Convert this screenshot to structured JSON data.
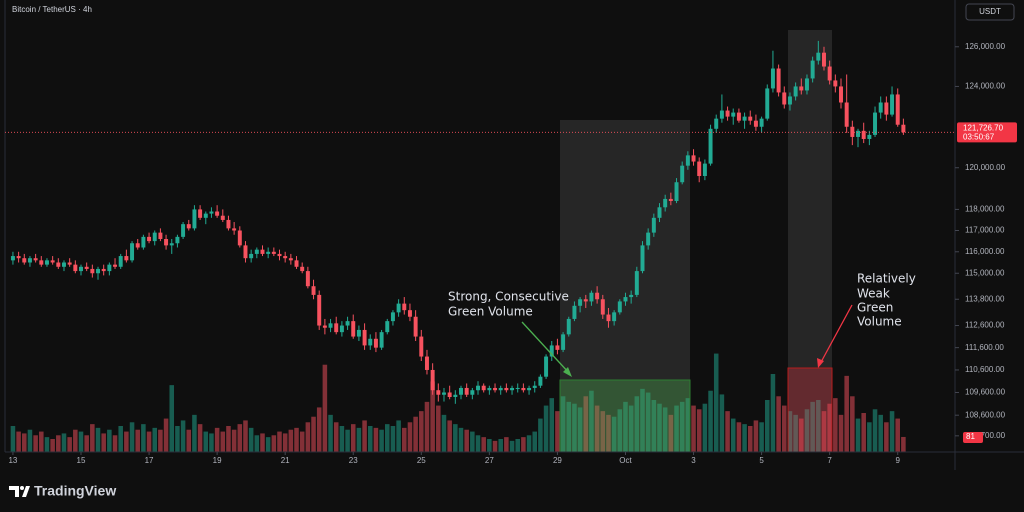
{
  "chart_data": {
    "type": "candlestick",
    "title": "Bitcoin / TetherUS · 4h",
    "currency_button": "USDT",
    "log_scale": true,
    "ylim": [
      107000,
      128400
    ],
    "xlim": [
      -1.4,
      166.1
    ],
    "volume_ylim": [
      0,
      700
    ],
    "up_color": "#22ab94",
    "down_color": "#f7525f",
    "yticks": [
      {
        "value": 126000,
        "label": "126,000.00"
      },
      {
        "value": 124000,
        "label": "124,000.00"
      },
      {
        "value": 120000,
        "label": "120,000.00"
      },
      {
        "value": 118000,
        "label": "118,000.00"
      },
      {
        "value": 117000,
        "label": "117,000.00"
      },
      {
        "value": 116000,
        "label": "116,000.00"
      },
      {
        "value": 115000,
        "label": "115,000.00"
      },
      {
        "value": 113800,
        "label": "113,800.00"
      },
      {
        "value": 112600,
        "label": "112,600.00"
      },
      {
        "value": 111600,
        "label": "111,600.00"
      },
      {
        "value": 110600,
        "label": "110,600.00"
      },
      {
        "value": 109600,
        "label": "109,600.00"
      },
      {
        "value": 108600,
        "label": "108,600.00"
      },
      {
        "value": 107700,
        "label": "107,700.00"
      }
    ],
    "xticks": [
      {
        "value": 0,
        "label": "13"
      },
      {
        "value": 12,
        "label": "15"
      },
      {
        "value": 24,
        "label": "17"
      },
      {
        "value": 36,
        "label": "19"
      },
      {
        "value": 48,
        "label": "21"
      },
      {
        "value": 60,
        "label": "23"
      },
      {
        "value": 72,
        "label": "25"
      },
      {
        "value": 84,
        "label": "27"
      },
      {
        "value": 96,
        "label": "29"
      },
      {
        "value": 108,
        "label": "Oct"
      },
      {
        "value": 120,
        "label": "3"
      },
      {
        "value": 132,
        "label": "5"
      },
      {
        "value": 144,
        "label": "7"
      },
      {
        "value": 156,
        "label": "9"
      }
    ],
    "last_price": 121726.7,
    "last_price_label": "121,726.70",
    "countdown": "03:50:67",
    "annotations": [
      {
        "lines": [
          "Strong, Consecutive",
          "Green Volume"
        ]
      },
      {
        "lines": [
          "Relatively",
          "Weak",
          "Green",
          "Volume"
        ]
      }
    ],
    "branding": "TradingView",
    "candles": [
      [
        115600,
        116000,
        115400,
        115800,
        140
      ],
      [
        115800,
        116000,
        115500,
        115700,
        110
      ],
      [
        115700,
        115900,
        115400,
        115500,
        100
      ],
      [
        115500,
        115800,
        115300,
        115700,
        120
      ],
      [
        115700,
        115900,
        115500,
        115600,
        90
      ],
      [
        115600,
        115800,
        115300,
        115400,
        110
      ],
      [
        115400,
        115700,
        115300,
        115600,
        80
      ],
      [
        115600,
        115800,
        115400,
        115500,
        70
      ],
      [
        115500,
        115700,
        115200,
        115300,
        90
      ],
      [
        115300,
        115600,
        115100,
        115500,
        100
      ],
      [
        115500,
        115700,
        115300,
        115400,
        80
      ],
      [
        115400,
        115600,
        115000,
        115100,
        120
      ],
      [
        115100,
        115400,
        114900,
        115300,
        110
      ],
      [
        115300,
        115500,
        115100,
        115200,
        90
      ],
      [
        115200,
        115400,
        114800,
        115000,
        150
      ],
      [
        115000,
        115300,
        114700,
        115200,
        130
      ],
      [
        115200,
        115400,
        114900,
        115100,
        100
      ],
      [
        115100,
        115500,
        114900,
        115400,
        120
      ],
      [
        115400,
        115700,
        115200,
        115300,
        90
      ],
      [
        115300,
        115900,
        115200,
        115800,
        140
      ],
      [
        115800,
        116100,
        115500,
        115600,
        110
      ],
      [
        115600,
        116500,
        115500,
        116400,
        160
      ],
      [
        116400,
        116600,
        116100,
        116200,
        120
      ],
      [
        116200,
        116800,
        116100,
        116700,
        150
      ],
      [
        116700,
        116900,
        116400,
        116500,
        110
      ],
      [
        116500,
        117000,
        116300,
        116900,
        130
      ],
      [
        116900,
        117100,
        116500,
        116600,
        120
      ],
      [
        116600,
        116800,
        116100,
        116300,
        180
      ],
      [
        116300,
        116600,
        115900,
        116400,
        360
      ],
      [
        116400,
        116800,
        116200,
        116700,
        140
      ],
      [
        116700,
        117400,
        116600,
        117300,
        170
      ],
      [
        117300,
        117500,
        117000,
        117100,
        120
      ],
      [
        117100,
        118200,
        117000,
        118000,
        200
      ],
      [
        118000,
        118200,
        117500,
        117600,
        150
      ],
      [
        117600,
        117900,
        117300,
        117800,
        110
      ],
      [
        117800,
        118100,
        117600,
        117900,
        100
      ],
      [
        117900,
        118200,
        117600,
        117700,
        130
      ],
      [
        117700,
        118000,
        117400,
        117500,
        110
      ],
      [
        117500,
        117700,
        117000,
        117100,
        140
      ],
      [
        117100,
        117400,
        116800,
        117000,
        120
      ],
      [
        117000,
        117200,
        116200,
        116300,
        150
      ],
      [
        116300,
        116500,
        115500,
        115700,
        170
      ],
      [
        115700,
        116100,
        115500,
        115900,
        130
      ],
      [
        115900,
        116200,
        115700,
        116100,
        90
      ],
      [
        116100,
        116300,
        115800,
        115900,
        100
      ],
      [
        115900,
        116200,
        115700,
        116000,
        80
      ],
      [
        116000,
        116200,
        115800,
        115900,
        90
      ],
      [
        115900,
        116100,
        115600,
        115800,
        110
      ],
      [
        115800,
        116000,
        115500,
        115700,
        100
      ],
      [
        115700,
        115900,
        115400,
        115600,
        120
      ],
      [
        115600,
        115800,
        115200,
        115300,
        130
      ],
      [
        115300,
        115500,
        115000,
        115100,
        110
      ],
      [
        115100,
        115300,
        114300,
        114400,
        160
      ],
      [
        114400,
        114700,
        113800,
        114000,
        190
      ],
      [
        114000,
        114200,
        112400,
        112600,
        240
      ],
      [
        112600,
        112900,
        112200,
        112500,
        470
      ],
      [
        112500,
        112900,
        112300,
        112700,
        200
      ],
      [
        112700,
        113000,
        112200,
        112300,
        160
      ],
      [
        112300,
        112800,
        112100,
        112600,
        140
      ],
      [
        112600,
        113000,
        112400,
        112800,
        120
      ],
      [
        112800,
        113100,
        112000,
        112100,
        150
      ],
      [
        112100,
        112600,
        111900,
        112400,
        130
      ],
      [
        112400,
        112700,
        111500,
        111700,
        170
      ],
      [
        111700,
        112200,
        111500,
        112000,
        140
      ],
      [
        112000,
        112300,
        111400,
        111600,
        130
      ],
      [
        111600,
        112400,
        111500,
        112300,
        120
      ],
      [
        112300,
        112900,
        112200,
        112800,
        150
      ],
      [
        112800,
        113300,
        112600,
        113200,
        140
      ],
      [
        113200,
        113800,
        113000,
        113600,
        170
      ],
      [
        113600,
        113900,
        113100,
        113300,
        130
      ],
      [
        113300,
        113600,
        112800,
        113000,
        160
      ],
      [
        113000,
        113300,
        111900,
        112100,
        190
      ],
      [
        112100,
        112400,
        111000,
        111200,
        220
      ],
      [
        111200,
        111500,
        110400,
        110600,
        270
      ],
      [
        110600,
        110900,
        109500,
        109700,
        380
      ],
      [
        109700,
        110000,
        109200,
        109500,
        250
      ],
      [
        109500,
        109800,
        109200,
        109600,
        200
      ],
      [
        109600,
        109900,
        109300,
        109400,
        170
      ],
      [
        109400,
        109700,
        109100,
        109500,
        150
      ],
      [
        109500,
        109900,
        109300,
        109800,
        130
      ],
      [
        109800,
        110000,
        109400,
        109500,
        120
      ],
      [
        109500,
        109800,
        109300,
        109700,
        110
      ],
      [
        109700,
        110100,
        109500,
        109900,
        90
      ],
      [
        109900,
        110000,
        109600,
        109700,
        80
      ],
      [
        109700,
        109900,
        109500,
        109800,
        70
      ],
      [
        109800,
        110000,
        109600,
        109700,
        60
      ],
      [
        109700,
        109900,
        109500,
        109800,
        70
      ],
      [
        109800,
        110000,
        109600,
        109700,
        80
      ],
      [
        109700,
        109900,
        109500,
        109800,
        60
      ],
      [
        109800,
        110000,
        109600,
        109800,
        70
      ],
      [
        109800,
        110000,
        109600,
        109700,
        80
      ],
      [
        109700,
        109900,
        109500,
        109800,
        90
      ],
      [
        109800,
        110100,
        109600,
        109900,
        110
      ],
      [
        109900,
        110400,
        109800,
        110300,
        180
      ],
      [
        110300,
        111300,
        110200,
        111200,
        250
      ],
      [
        111200,
        111900,
        111000,
        111700,
        290
      ],
      [
        111700,
        112000,
        111300,
        111500,
        220
      ],
      [
        111500,
        112300,
        111400,
        112200,
        300
      ],
      [
        112200,
        113000,
        112100,
        112900,
        270
      ],
      [
        112900,
        113700,
        112800,
        113500,
        260
      ],
      [
        113500,
        113900,
        113200,
        113800,
        240
      ],
      [
        113800,
        114000,
        113400,
        113700,
        300
      ],
      [
        113700,
        114200,
        113500,
        114100,
        330
      ],
      [
        114100,
        114400,
        113600,
        113800,
        250
      ],
      [
        113800,
        114000,
        112900,
        113100,
        220
      ],
      [
        113100,
        113400,
        112500,
        112800,
        200
      ],
      [
        112800,
        113300,
        112600,
        113200,
        190
      ],
      [
        113200,
        113800,
        113100,
        113700,
        230
      ],
      [
        113700,
        114100,
        113500,
        113900,
        270
      ],
      [
        113900,
        114200,
        113600,
        114000,
        250
      ],
      [
        114000,
        115300,
        113900,
        115100,
        300
      ],
      [
        115100,
        116500,
        115000,
        116300,
        340
      ],
      [
        116300,
        117100,
        116100,
        116900,
        320
      ],
      [
        116900,
        117800,
        116700,
        117600,
        280
      ],
      [
        117600,
        118300,
        117400,
        118100,
        260
      ],
      [
        118100,
        118700,
        117900,
        118500,
        240
      ],
      [
        118500,
        118800,
        118200,
        118400,
        200
      ],
      [
        118400,
        119500,
        118300,
        119300,
        250
      ],
      [
        119300,
        120300,
        119200,
        120100,
        270
      ],
      [
        120100,
        120800,
        119900,
        120600,
        290
      ],
      [
        120600,
        120900,
        120100,
        120300,
        250
      ],
      [
        120300,
        120500,
        119300,
        119600,
        230
      ],
      [
        119600,
        120400,
        119400,
        120200,
        260
      ],
      [
        120200,
        122100,
        120100,
        121900,
        330
      ],
      [
        121900,
        122600,
        121700,
        122400,
        530
      ],
      [
        122400,
        123600,
        122200,
        122800,
        310
      ],
      [
        122800,
        123000,
        122300,
        122500,
        220
      ],
      [
        122500,
        122900,
        122100,
        122700,
        180
      ],
      [
        122700,
        122900,
        122200,
        122300,
        160
      ],
      [
        122300,
        122700,
        121900,
        122500,
        150
      ],
      [
        122500,
        122800,
        122100,
        122300,
        140
      ],
      [
        122300,
        122600,
        121800,
        122000,
        170
      ],
      [
        122000,
        122500,
        121700,
        122400,
        160
      ],
      [
        122400,
        124100,
        122300,
        123900,
        280
      ],
      [
        123900,
        125800,
        123700,
        124900,
        420
      ],
      [
        124900,
        125100,
        123500,
        123700,
        300
      ],
      [
        123700,
        124000,
        122900,
        123100,
        250
      ],
      [
        123100,
        123700,
        122800,
        123500,
        220
      ],
      [
        123500,
        124200,
        123300,
        124000,
        200
      ],
      [
        124000,
        124400,
        123600,
        123800,
        180
      ],
      [
        123800,
        124600,
        123600,
        124400,
        230
      ],
      [
        124400,
        125500,
        124200,
        125300,
        270
      ],
      [
        125300,
        126300,
        125100,
        125700,
        280
      ],
      [
        125700,
        126000,
        124800,
        125000,
        220
      ],
      [
        125000,
        125300,
        124100,
        124300,
        260
      ],
      [
        124300,
        124600,
        123700,
        124000,
        290
      ],
      [
        124000,
        124400,
        122900,
        123200,
        200
      ],
      [
        123200,
        124600,
        121700,
        122000,
        410
      ],
      [
        122000,
        122300,
        121100,
        121500,
        300
      ],
      [
        121500,
        121900,
        121000,
        121800,
        180
      ],
      [
        121800,
        122200,
        121200,
        121400,
        210
      ],
      [
        121400,
        121800,
        121100,
        121600,
        160
      ],
      [
        121600,
        123000,
        121500,
        122700,
        230
      ],
      [
        122700,
        123500,
        122400,
        123200,
        200
      ],
      [
        123200,
        123500,
        122300,
        122600,
        160
      ],
      [
        122600,
        124000,
        122500,
        123600,
        220
      ],
      [
        123600,
        123900,
        122000,
        122100,
        180
      ],
      [
        122100,
        122400,
        121600,
        121726.7,
        81
      ]
    ]
  }
}
